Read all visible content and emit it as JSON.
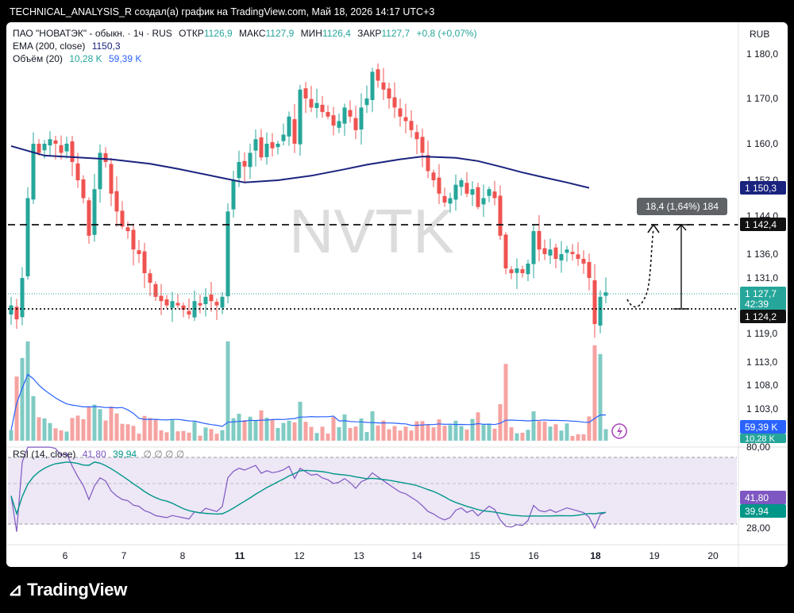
{
  "caption": "TECHNICAL_ANALYSIS_R создал(а) график на TradingView.com, Май 18, 2026 14:17 UTC+3",
  "brand": "TradingView",
  "legend": {
    "symbol": "ПАО \"НОВАТЭК\" - обыкн. · 1ч · RUS",
    "o_label": "ОТКР",
    "o_val": "1126,9",
    "h_label": "МАКС",
    "h_val": "1127,9",
    "l_label": "МИН",
    "l_val": "1126,4",
    "c_label": "ЗАКР",
    "c_val": "1127,7",
    "change": "+0,8 (+0,07%)",
    "ema_label": "EMA (200, close)",
    "ema_val": "1150,3",
    "vol_label": "Объём (20)",
    "vol_val1": "10,28 K",
    "vol_val2": "59,39 K",
    "rsi_label": "RSI (14, close)",
    "rsi_val1": "41,80",
    "rsi_val2": "39,94",
    "rsi_extra": "∅ ∅ ∅ ∅"
  },
  "currency": "RUB",
  "watermark": "NVTK",
  "measure_label": "18,4 (1,64%) 184",
  "price_badges": {
    "ema": "1 150,3",
    "resistance": "1 142,4",
    "current": "1 127,7",
    "countdown": "42:39",
    "support": "1 124,2",
    "vol_ma": "59,39 K",
    "vol": "10,28 K",
    "rsi": "41,80",
    "rsi_ma": "39,94"
  },
  "colors": {
    "up": "#26a69a",
    "down": "#ef5350",
    "ema": "#1a237e",
    "vol_ma": "#2962ff",
    "rsi": "#7e57c2",
    "rsi_ma": "#009688"
  },
  "chart_data": {
    "type": "candlestick",
    "x_ticks": [
      "6",
      "7",
      "8",
      "11",
      "12",
      "13",
      "14",
      "15",
      "16",
      "18",
      "19",
      "20"
    ],
    "y_ticks": [
      "1 180,0",
      "1 170,0",
      "1 160,0",
      "1 152,0",
      "1 144,0",
      "1 136,0",
      "1 131,0",
      "1 119,0",
      "1 113,0",
      "1 108,0",
      "1 103,0"
    ],
    "rsi_ticks": [
      "80,00",
      "28,00"
    ],
    "ylim": [
      1100,
      1182
    ],
    "horizontal_levels": {
      "resistance": 1142.4,
      "support": 1124.2
    },
    "ema200": [
      [
        0,
        1159.5
      ],
      [
        6,
        1157.4
      ],
      [
        12,
        1157
      ],
      [
        18,
        1156.6
      ],
      [
        25,
        1155.6
      ],
      [
        30,
        1154.5
      ],
      [
        38,
        1152.5
      ],
      [
        42,
        1151.5
      ],
      [
        48,
        1152
      ],
      [
        54,
        1153
      ],
      [
        60,
        1154.4
      ],
      [
        64,
        1155.4
      ],
      [
        70,
        1156.6
      ],
      [
        74,
        1157.2
      ],
      [
        80,
        1156.9
      ],
      [
        84,
        1156.2
      ],
      [
        88,
        1155
      ],
      [
        92,
        1153.7
      ],
      [
        96,
        1152.6
      ],
      [
        100,
        1151.5
      ],
      [
        104,
        1150.3
      ]
    ],
    "close": [
      [
        0,
        1125
      ],
      [
        1,
        1122
      ],
      [
        2,
        1131
      ],
      [
        3,
        1148
      ],
      [
        4,
        1160
      ],
      [
        5,
        1158
      ],
      [
        6,
        1160
      ],
      [
        7,
        1161
      ],
      [
        8,
        1160
      ],
      [
        9,
        1158
      ],
      [
        10,
        1160
      ],
      [
        11,
        1156
      ],
      [
        12,
        1152
      ],
      [
        13,
        1148
      ],
      [
        14,
        1140
      ],
      [
        15,
        1150
      ],
      [
        16,
        1158
      ],
      [
        17,
        1156
      ],
      [
        18,
        1149
      ],
      [
        19,
        1145
      ],
      [
        20,
        1142
      ],
      [
        21,
        1141
      ],
      [
        22,
        1137
      ],
      [
        23,
        1136
      ],
      [
        24,
        1132
      ],
      [
        25,
        1130
      ],
      [
        26,
        1127
      ],
      [
        27,
        1126
      ],
      [
        28,
        1125
      ],
      [
        29,
        1126
      ],
      [
        30,
        1125
      ],
      [
        31,
        1124
      ],
      [
        32,
        1123
      ],
      [
        33,
        1126
      ],
      [
        34,
        1125
      ],
      [
        35,
        1127
      ],
      [
        36,
        1126
      ],
      [
        37,
        1125
      ],
      [
        38,
        1127
      ],
      [
        39,
        1145
      ],
      [
        40,
        1152
      ],
      [
        41,
        1156
      ],
      [
        42,
        1155
      ],
      [
        43,
        1158
      ],
      [
        44,
        1161
      ],
      [
        45,
        1157
      ],
      [
        46,
        1160
      ],
      [
        47,
        1159
      ],
      [
        48,
        1160
      ],
      [
        49,
        1162
      ],
      [
        50,
        1166
      ],
      [
        51,
        1160
      ],
      [
        52,
        1172
      ],
      [
        53,
        1170
      ],
      [
        54,
        1168
      ],
      [
        55,
        1169
      ],
      [
        56,
        1167
      ],
      [
        57,
        1166
      ],
      [
        58,
        1164
      ],
      [
        59,
        1165
      ],
      [
        60,
        1168
      ],
      [
        61,
        1166
      ],
      [
        62,
        1163
      ],
      [
        63,
        1168
      ],
      [
        64,
        1170
      ],
      [
        65,
        1176
      ],
      [
        66,
        1174
      ],
      [
        67,
        1172
      ],
      [
        68,
        1170
      ],
      [
        69,
        1168
      ],
      [
        70,
        1166
      ],
      [
        71,
        1165
      ],
      [
        72,
        1163
      ],
      [
        73,
        1161
      ],
      [
        74,
        1158
      ],
      [
        75,
        1154
      ],
      [
        76,
        1152
      ],
      [
        77,
        1149
      ],
      [
        78,
        1147
      ],
      [
        79,
        1148
      ],
      [
        80,
        1151
      ],
      [
        81,
        1152
      ],
      [
        82,
        1149
      ],
      [
        83,
        1150
      ],
      [
        84,
        1146
      ],
      [
        85,
        1148
      ],
      [
        86,
        1150
      ],
      [
        87,
        1148
      ],
      [
        88,
        1140
      ],
      [
        89,
        1133
      ],
      [
        90,
        1132
      ],
      [
        91,
        1133
      ],
      [
        92,
        1132
      ],
      [
        93,
        1134
      ],
      [
        94,
        1141
      ],
      [
        95,
        1137
      ],
      [
        96,
        1136
      ],
      [
        97,
        1137
      ],
      [
        98,
        1135
      ],
      [
        99,
        1136
      ],
      [
        100,
        1137
      ],
      [
        101,
        1136
      ],
      [
        102,
        1135
      ],
      [
        103,
        1134
      ],
      [
        104,
        1131
      ],
      [
        105,
        1121
      ],
      [
        106,
        1127
      ],
      [
        107,
        1128
      ]
    ]
  }
}
